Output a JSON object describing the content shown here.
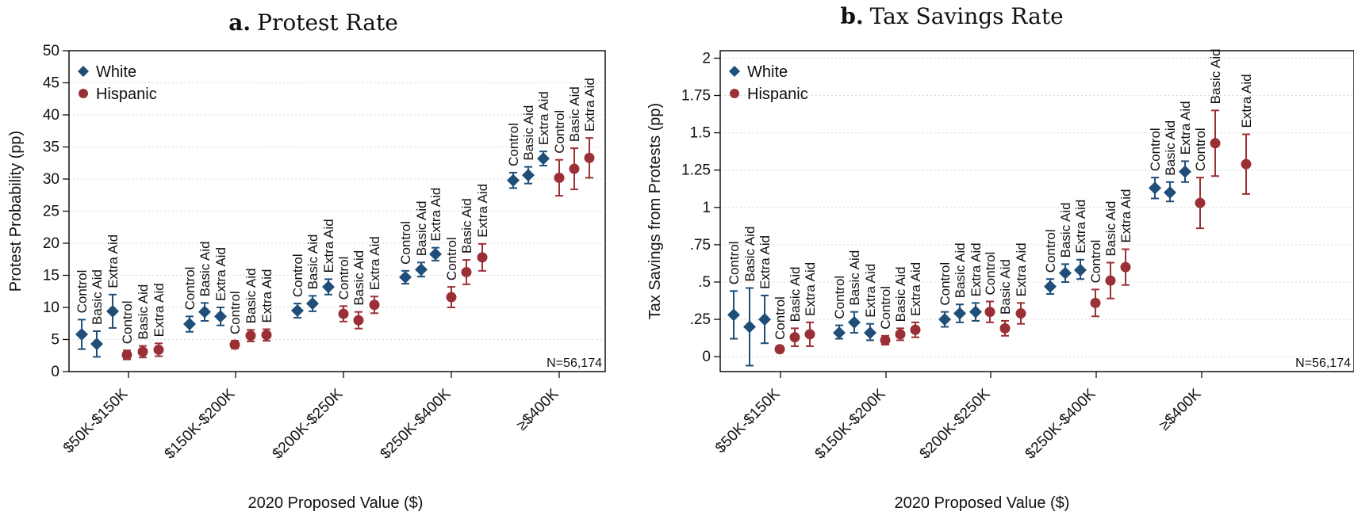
{
  "chart_data": [
    {
      "type": "scatter",
      "panel_letter": "a.",
      "title": "Protest Rate",
      "xlabel": "2020 Proposed Value ($)",
      "ylabel": "Protest Probability (pp)",
      "ylim": [
        0,
        50
      ],
      "yticks": [
        "0",
        "5",
        "10",
        "15",
        "20",
        "25",
        "30",
        "35",
        "40",
        "45",
        "50"
      ],
      "ytick_values": [
        0,
        5,
        10,
        15,
        20,
        25,
        30,
        35,
        40,
        45,
        50
      ],
      "grid": true,
      "legend_position": "top-left",
      "note": "N=56,174",
      "categories": [
        "$50K-$150K",
        "$150K-$200K",
        "$200K-$250K",
        "$250K-$400K",
        "≥$400K"
      ],
      "treatments": [
        "Control",
        "Basic Aid",
        "Extra Aid"
      ],
      "series": [
        {
          "name": "White",
          "marker": "diamond",
          "color": "#1f4e79",
          "values": [
            [
              5.8,
              4.3,
              9.4
            ],
            [
              7.4,
              9.3,
              8.6
            ],
            [
              9.5,
              10.6,
              13.2
            ],
            [
              14.7,
              15.9,
              18.3
            ],
            [
              29.8,
              30.6,
              33.2
            ]
          ],
          "ci_low": [
            [
              3.5,
              2.3,
              6.8
            ],
            [
              6.2,
              7.9,
              7.2
            ],
            [
              8.4,
              9.4,
              12.0
            ],
            [
              13.7,
              14.8,
              17.3
            ],
            [
              28.6,
              29.3,
              32.1
            ]
          ],
          "ci_high": [
            [
              8.1,
              6.3,
              12.0
            ],
            [
              8.6,
              10.7,
              10.0
            ],
            [
              10.6,
              11.8,
              14.4
            ],
            [
              15.7,
              17.0,
              19.3
            ],
            [
              31.0,
              31.9,
              34.3
            ]
          ]
        },
        {
          "name": "Hispanic",
          "marker": "circle",
          "color": "#9b2f36",
          "values": [
            [
              2.6,
              3.1,
              3.4
            ],
            [
              4.2,
              5.6,
              5.7
            ],
            [
              9.0,
              8.0,
              10.4
            ],
            [
              11.6,
              15.5,
              17.8
            ],
            [
              30.2,
              31.6,
              33.3
            ]
          ],
          "ci_low": [
            [
              1.9,
              2.2,
              2.4
            ],
            [
              3.6,
              4.7,
              4.8
            ],
            [
              7.8,
              6.7,
              9.1
            ],
            [
              10.0,
              13.6,
              15.7
            ],
            [
              27.4,
              28.4,
              30.2
            ]
          ],
          "ci_high": [
            [
              3.3,
              4.0,
              4.4
            ],
            [
              4.8,
              6.5,
              6.6
            ],
            [
              10.2,
              9.3,
              11.7
            ],
            [
              13.2,
              17.4,
              19.9
            ],
            [
              33.0,
              34.8,
              36.4
            ]
          ]
        }
      ]
    },
    {
      "type": "scatter",
      "panel_letter": "b.",
      "title": "Tax Savings Rate",
      "xlabel": "2020 Proposed Value ($)",
      "ylabel": "Tax Savings from Protests (pp)",
      "ylim": [
        -0.1,
        2.05
      ],
      "yticks": [
        "0",
        ".25",
        ".5",
        ".75",
        "1",
        "1.25",
        "1.5",
        "1.75",
        "2"
      ],
      "ytick_values": [
        0,
        0.25,
        0.5,
        0.75,
        1,
        1.25,
        1.5,
        1.75,
        2
      ],
      "grid": true,
      "legend_position": "top-left",
      "note": "N=56,174",
      "categories": [
        "$50K-$150K",
        "$150K-$200K",
        "$200K-$250K",
        "$250K-$400K",
        "≥$400K"
      ],
      "treatments": [
        "Control",
        "Basic Aid",
        "Extra Aid"
      ],
      "series": [
        {
          "name": "White",
          "marker": "diamond",
          "color": "#1f4e79",
          "values": [
            [
              0.28,
              0.2,
              0.25
            ],
            [
              0.16,
              0.23,
              0.16
            ],
            [
              0.25,
              0.29,
              0.3
            ],
            [
              0.47,
              0.56,
              0.58
            ],
            [
              1.13,
              1.1,
              1.24
            ]
          ],
          "ci_low": [
            [
              0.12,
              -0.06,
              0.09
            ],
            [
              0.12,
              0.16,
              0.11
            ],
            [
              0.2,
              0.23,
              0.24
            ],
            [
              0.42,
              0.5,
              0.52
            ],
            [
              1.06,
              1.04,
              1.17
            ]
          ],
          "ci_high": [
            [
              0.44,
              0.46,
              0.41
            ],
            [
              0.21,
              0.3,
              0.22
            ],
            [
              0.3,
              0.35,
              0.36
            ],
            [
              0.52,
              0.62,
              0.65
            ],
            [
              1.2,
              1.17,
              1.31
            ]
          ]
        },
        {
          "name": "Hispanic",
          "marker": "circle",
          "color": "#9b2f36",
          "values": [
            [
              0.05,
              0.13,
              0.15
            ],
            [
              0.11,
              0.15,
              0.18
            ],
            [
              0.3,
              0.19,
              0.29
            ],
            [
              0.36,
              0.51,
              0.6
            ],
            [
              1.03,
              1.43,
              1.29
            ]
          ],
          "ci_low": [
            [
              0.03,
              0.07,
              0.07
            ],
            [
              0.08,
              0.11,
              0.13
            ],
            [
              0.23,
              0.14,
              0.22
            ],
            [
              0.27,
              0.39,
              0.48
            ],
            [
              0.86,
              1.21,
              1.09
            ]
          ],
          "ci_high": [
            [
              0.07,
              0.19,
              0.23
            ],
            [
              0.14,
              0.19,
              0.23
            ],
            [
              0.37,
              0.24,
              0.36
            ],
            [
              0.45,
              0.63,
              0.72
            ],
            [
              1.2,
              1.65,
              1.49
            ]
          ]
        }
      ]
    }
  ]
}
